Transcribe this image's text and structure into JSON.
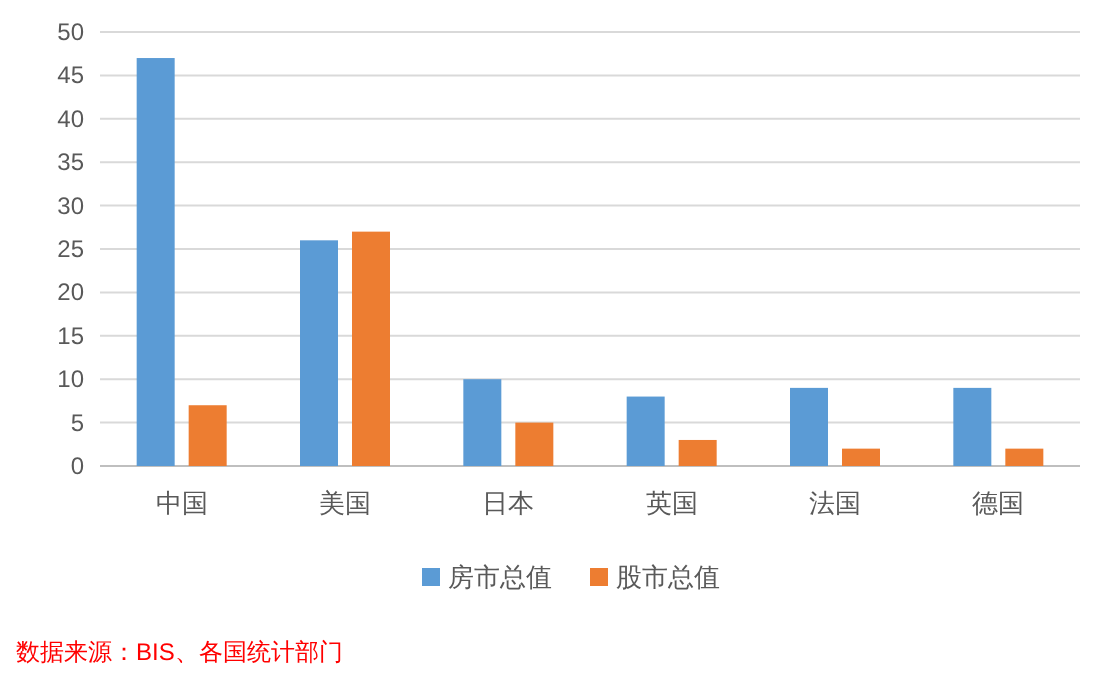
{
  "chart_data": {
    "type": "bar",
    "categories": [
      "中国",
      "美国",
      "日本",
      "英国",
      "法国",
      "德国"
    ],
    "series": [
      {
        "name": "房市总值",
        "color": "#5b9bd5",
        "values": [
          47,
          26,
          10,
          8,
          9,
          9
        ]
      },
      {
        "name": "股市总值",
        "color": "#ed7d31",
        "values": [
          7,
          27,
          5,
          3,
          2,
          2
        ]
      }
    ],
    "ylim": [
      0,
      50
    ],
    "yticks": [
      0,
      5,
      10,
      15,
      20,
      25,
      30,
      35,
      40,
      45,
      50
    ],
    "grid": "y",
    "legend": "bottom",
    "annotations": [
      "数据来源：BIS、各国统计部门"
    ]
  }
}
